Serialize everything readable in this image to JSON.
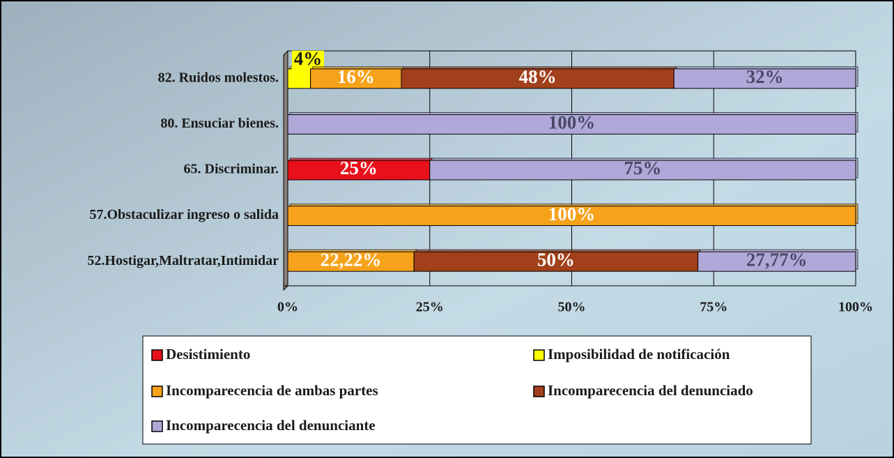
{
  "chart_data": {
    "type": "bar",
    "stacked": true,
    "categories": [
      "82. Ruidos molestos.",
      "80. Ensuciar bienes.",
      "65. Discriminar.",
      "57.Obstaculizar ingreso o salida",
      "52.Hostigar,Maltratar,Intimidar"
    ],
    "series": [
      {
        "name": "Desistimiento",
        "color": "#e8101a",
        "values": [
          null,
          null,
          25,
          null,
          null
        ],
        "value_labels": [
          null,
          null,
          "25%",
          null,
          null
        ]
      },
      {
        "name": "Imposibilidad de notificación",
        "color": "#ffff00",
        "values": [
          4,
          null,
          null,
          null,
          null
        ],
        "value_labels": [
          "4%",
          null,
          null,
          null,
          null
        ]
      },
      {
        "name": "Incomparecencia de ambas partes",
        "color": "#f7a21b",
        "values": [
          16,
          null,
          null,
          100,
          22.22
        ],
        "value_labels": [
          "16%",
          null,
          null,
          "100%",
          "22,22%"
        ]
      },
      {
        "name": "Incomparecencia del denunciado",
        "color": "#a1401a",
        "values": [
          48,
          null,
          null,
          null,
          50
        ],
        "value_labels": [
          "48%",
          null,
          null,
          null,
          "50%"
        ]
      },
      {
        "name": "Incomparecencia del denunciante",
        "color": "#b0a8d8",
        "values": [
          32,
          100,
          75,
          null,
          27.77
        ],
        "value_labels": [
          "32%",
          "100%",
          "75%",
          null,
          "27,77%"
        ]
      }
    ],
    "xlim": [
      0,
      100
    ],
    "xticks": [
      {
        "value": 0,
        "label": "0%"
      },
      {
        "value": 25,
        "label": "25%"
      },
      {
        "value": 50,
        "label": "50%"
      },
      {
        "value": 75,
        "label": "75%"
      },
      {
        "value": 100,
        "label": "100%"
      }
    ]
  }
}
